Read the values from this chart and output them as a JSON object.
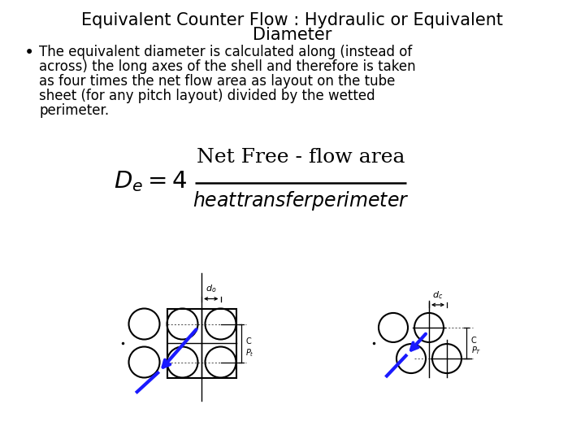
{
  "title_line1": "Equivalent Counter Flow : Hydraulic or Equivalent",
  "title_line2": "Diameter",
  "bullet_text": "The equivalent diameter is calculated along (instead of\nacross) the long axes of the shell and therefore is taken\nas four times the net flow area as layout on the tube\nsheet (for any pitch layout) divided by the wetted\nperimeter.",
  "background_color": "#ffffff",
  "text_color": "#000000",
  "title_fontsize": 15,
  "body_fontsize": 12,
  "formula_fontsize": 18
}
